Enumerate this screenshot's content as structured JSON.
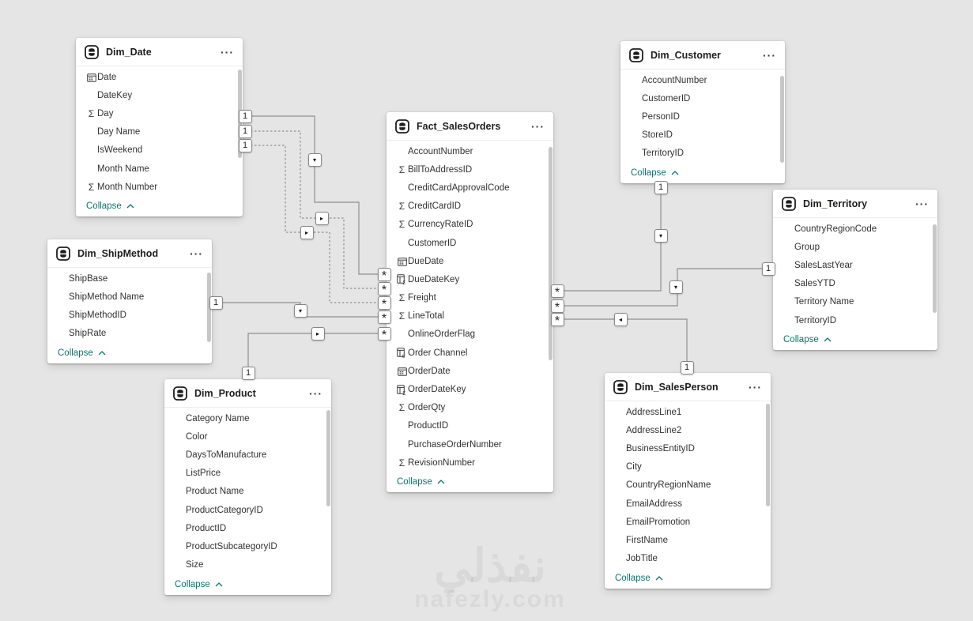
{
  "app": {
    "view_name": "model-diagram"
  },
  "colors": {
    "background": "#e5e5e5",
    "card": "#ffffff",
    "accent_teal": "#0b756b",
    "wire": "#8f8f8f",
    "text": "#323130"
  },
  "watermark": {
    "line1": "نفذلي",
    "line2": "nafezly.com"
  },
  "tables": [
    {
      "id": "dim_date",
      "title": "Dim_Date",
      "menu_label": "···",
      "collapse_label": "Collapse",
      "fields": [
        {
          "name": "Date",
          "icon": "calendar-icon"
        },
        {
          "name": "DateKey",
          "icon": ""
        },
        {
          "name": "Day",
          "icon": "sigma-icon"
        },
        {
          "name": "Day Name",
          "icon": ""
        },
        {
          "name": "IsWeekend",
          "icon": ""
        },
        {
          "name": "Month Name",
          "icon": ""
        },
        {
          "name": "Month Number",
          "icon": "sigma-icon"
        }
      ]
    },
    {
      "id": "dim_shipmethod",
      "title": "Dim_ShipMethod",
      "menu_label": "···",
      "collapse_label": "Collapse",
      "fields": [
        {
          "name": "ShipBase",
          "icon": ""
        },
        {
          "name": "ShipMethod Name",
          "icon": ""
        },
        {
          "name": "ShipMethodID",
          "icon": ""
        },
        {
          "name": "ShipRate",
          "icon": ""
        }
      ]
    },
    {
      "id": "dim_product",
      "title": "Dim_Product",
      "menu_label": "···",
      "collapse_label": "Collapse",
      "fields": [
        {
          "name": "Category Name",
          "icon": ""
        },
        {
          "name": "Color",
          "icon": ""
        },
        {
          "name": "DaysToManufacture",
          "icon": ""
        },
        {
          "name": "ListPrice",
          "icon": ""
        },
        {
          "name": "Product Name",
          "icon": ""
        },
        {
          "name": "ProductCategoryID",
          "icon": ""
        },
        {
          "name": "ProductID",
          "icon": ""
        },
        {
          "name": "ProductSubcategoryID",
          "icon": ""
        },
        {
          "name": "Size",
          "icon": ""
        }
      ]
    },
    {
      "id": "fact_salesorders",
      "title": "Fact_SalesOrders",
      "menu_label": "···",
      "collapse_label": "Collapse",
      "fields": [
        {
          "name": "AccountNumber",
          "icon": ""
        },
        {
          "name": "BillToAddressID",
          "icon": "sigma-icon"
        },
        {
          "name": "CreditCardApprovalCode",
          "icon": ""
        },
        {
          "name": "CreditCardID",
          "icon": "sigma-icon"
        },
        {
          "name": "CurrencyRateID",
          "icon": "sigma-icon"
        },
        {
          "name": "CustomerID",
          "icon": ""
        },
        {
          "name": "DueDate",
          "icon": "calendar-icon"
        },
        {
          "name": "DueDateKey",
          "icon": "calculated-column-sigma-icon"
        },
        {
          "name": "Freight",
          "icon": "sigma-icon"
        },
        {
          "name": "LineTotal",
          "icon": "sigma-icon"
        },
        {
          "name": "OnlineOrderFlag",
          "icon": ""
        },
        {
          "name": "Order Channel",
          "icon": "calculated-column-fx-icon"
        },
        {
          "name": "OrderDate",
          "icon": "calendar-icon"
        },
        {
          "name": "OrderDateKey",
          "icon": "calculated-column-sigma-icon"
        },
        {
          "name": "OrderQty",
          "icon": "sigma-icon"
        },
        {
          "name": "ProductID",
          "icon": ""
        },
        {
          "name": "PurchaseOrderNumber",
          "icon": ""
        },
        {
          "name": "RevisionNumber",
          "icon": "sigma-icon"
        }
      ]
    },
    {
      "id": "dim_customer",
      "title": "Dim_Customer",
      "menu_label": "···",
      "collapse_label": "Collapse",
      "fields": [
        {
          "name": "AccountNumber",
          "icon": ""
        },
        {
          "name": "CustomerID",
          "icon": ""
        },
        {
          "name": "PersonID",
          "icon": ""
        },
        {
          "name": "StoreID",
          "icon": ""
        },
        {
          "name": "TerritoryID",
          "icon": ""
        }
      ]
    },
    {
      "id": "dim_territory",
      "title": "Dim_Territory",
      "menu_label": "···",
      "collapse_label": "Collapse",
      "fields": [
        {
          "name": "CountryRegionCode",
          "icon": ""
        },
        {
          "name": "Group",
          "icon": ""
        },
        {
          "name": "SalesLastYear",
          "icon": ""
        },
        {
          "name": "SalesYTD",
          "icon": ""
        },
        {
          "name": "Territory Name",
          "icon": ""
        },
        {
          "name": "TerritoryID",
          "icon": ""
        }
      ]
    },
    {
      "id": "dim_salesperson",
      "title": "Dim_SalesPerson",
      "menu_label": "···",
      "collapse_label": "Collapse",
      "fields": [
        {
          "name": "AddressLine1",
          "icon": ""
        },
        {
          "name": "AddressLine2",
          "icon": ""
        },
        {
          "name": "BusinessEntityID",
          "icon": ""
        },
        {
          "name": "City",
          "icon": ""
        },
        {
          "name": "CountryRegionName",
          "icon": ""
        },
        {
          "name": "EmailAddress",
          "icon": ""
        },
        {
          "name": "EmailPromotion",
          "icon": ""
        },
        {
          "name": "FirstName",
          "icon": ""
        },
        {
          "name": "JobTitle",
          "icon": ""
        }
      ]
    }
  ],
  "relationships": [
    {
      "id": "rel-date-fact-1",
      "from": "Dim_Date",
      "to": "Fact_SalesOrders",
      "one_label": "1",
      "many_label": "*",
      "line": "solid",
      "filter_arrow": "down"
    },
    {
      "id": "rel-date-fact-2",
      "from": "Dim_Date",
      "to": "Fact_SalesOrders",
      "one_label": "1",
      "many_label": "*",
      "line": "dashed",
      "filter_arrow": "right"
    },
    {
      "id": "rel-date-fact-3",
      "from": "Dim_Date",
      "to": "Fact_SalesOrders",
      "one_label": "1",
      "many_label": "*",
      "line": "dashed",
      "filter_arrow": "right"
    },
    {
      "id": "rel-shipmethod-fact",
      "from": "Dim_ShipMethod",
      "to": "Fact_SalesOrders",
      "one_label": "1",
      "many_label": "*",
      "line": "solid",
      "filter_arrow": "down"
    },
    {
      "id": "rel-product-fact",
      "from": "Dim_Product",
      "to": "Fact_SalesOrders",
      "one_label": "1",
      "many_label": "*",
      "line": "solid",
      "filter_arrow": "right"
    },
    {
      "id": "rel-customer-fact",
      "from": "Dim_Customer",
      "to": "Fact_SalesOrders",
      "one_label": "1",
      "many_label": "*",
      "line": "solid",
      "filter_arrow": "down"
    },
    {
      "id": "rel-territory-fact",
      "from": "Dim_Territory",
      "to": "Fact_SalesOrders",
      "one_label": "1",
      "many_label": "*",
      "line": "solid",
      "filter_arrow": "down"
    },
    {
      "id": "rel-salesperson-fact",
      "from": "Dim_SalesPerson",
      "to": "Fact_SalesOrders",
      "one_label": "1",
      "many_label": "*",
      "line": "solid",
      "filter_arrow": "left"
    }
  ]
}
